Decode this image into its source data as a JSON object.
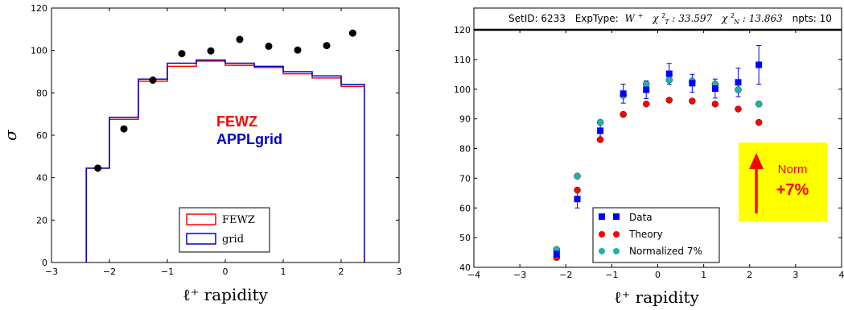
{
  "colors": {
    "fewz": "#ff0000",
    "grid": "#0000cc",
    "data": "#0000ff",
    "theory": "#ff0000",
    "normalized": "#20b2aa",
    "norm_box": "#ffff00",
    "norm_arrow": "#ff0000"
  },
  "chart_data": [
    {
      "type": "step",
      "xlabel": "ℓ⁺ rapidity",
      "ylabel": "σ",
      "xlim": [
        -3,
        3
      ],
      "ylim": [
        0,
        120
      ],
      "xticks": [
        -3,
        -2,
        -1,
        0,
        1,
        2,
        3
      ],
      "yticks": [
        0,
        20,
        40,
        60,
        80,
        100,
        120
      ],
      "bin_edges": [
        -2.4,
        -2.0,
        -1.5,
        -1.0,
        -0.5,
        0.0,
        0.5,
        1.0,
        1.5,
        2.0,
        2.4
      ],
      "series": [
        {
          "name": "FEWZ",
          "kind": "step",
          "values": [
            44.5,
            67.5,
            85.5,
            92.5,
            95.0,
            93.0,
            92.0,
            89.0,
            87.0,
            83.0
          ]
        },
        {
          "name": "grid",
          "kind": "step",
          "values": [
            44.5,
            68.5,
            86.5,
            94.0,
            95.5,
            94.0,
            92.5,
            90.0,
            88.0,
            84.0
          ]
        },
        {
          "name": "",
          "kind": "points",
          "x": [
            -2.2,
            -1.75,
            -1.25,
            -0.75,
            -0.25,
            0.25,
            0.75,
            1.25,
            1.75,
            2.2
          ],
          "values": [
            44.5,
            63.0,
            86.0,
            98.5,
            99.8,
            105.2,
            102.0,
            100.2,
            102.3,
            108.2
          ]
        }
      ],
      "annotations": [
        {
          "text": "FEWZ",
          "color": "#ff0000",
          "x": 0,
          "y": 66
        },
        {
          "text": "APPLgrid",
          "color": "#0000cc",
          "x": 0,
          "y": 57
        }
      ],
      "legend": "bottom-center"
    },
    {
      "type": "scatter",
      "header": {
        "setid": "SetID: 6233",
        "exptype_label": "ExpType:",
        "exptype": "W",
        "exptype_sup": "+",
        "chi2t_label": "χ",
        "chi2t_sub": "T",
        "chi2t_value": ": 33.597",
        "chi2n_label": "χ",
        "chi2n_sub": "N",
        "chi2n_value": ": 13.863",
        "npts": "npts: 10"
      },
      "xlabel": "ℓ⁺ rapidity",
      "xlim": [
        -4,
        4
      ],
      "ylim": [
        40,
        120
      ],
      "xticks": [
        -4,
        -3,
        -2,
        -1,
        0,
        1,
        2,
        3,
        4
      ],
      "yticks": [
        40,
        50,
        60,
        70,
        80,
        90,
        100,
        110,
        120
      ],
      "x": [
        -2.2,
        -1.75,
        -1.25,
        -0.75,
        -0.25,
        0.25,
        0.75,
        1.25,
        1.75,
        2.2
      ],
      "series": [
        {
          "name": "Data",
          "values": [
            44.5,
            63.0,
            86.0,
            98.5,
            99.8,
            105.2,
            102.0,
            100.2,
            102.3,
            108.2
          ],
          "errors": [
            1.8,
            3.0,
            2.5,
            3.2,
            3.0,
            3.5,
            3.0,
            3.2,
            4.8,
            6.5
          ]
        },
        {
          "name": "Theory",
          "values": [
            43.3,
            66.0,
            83.0,
            91.5,
            95.0,
            96.3,
            96.0,
            95.0,
            93.3,
            88.8
          ]
        },
        {
          "name": "Normalized 7%",
          "values": [
            46.0,
            70.7,
            88.8,
            97.9,
            101.7,
            103.1,
            102.7,
            101.7,
            99.8,
            95.0
          ]
        }
      ],
      "legend": "bottom-center",
      "norm_box": {
        "line1": "Norm",
        "line2": "+7%"
      }
    }
  ]
}
